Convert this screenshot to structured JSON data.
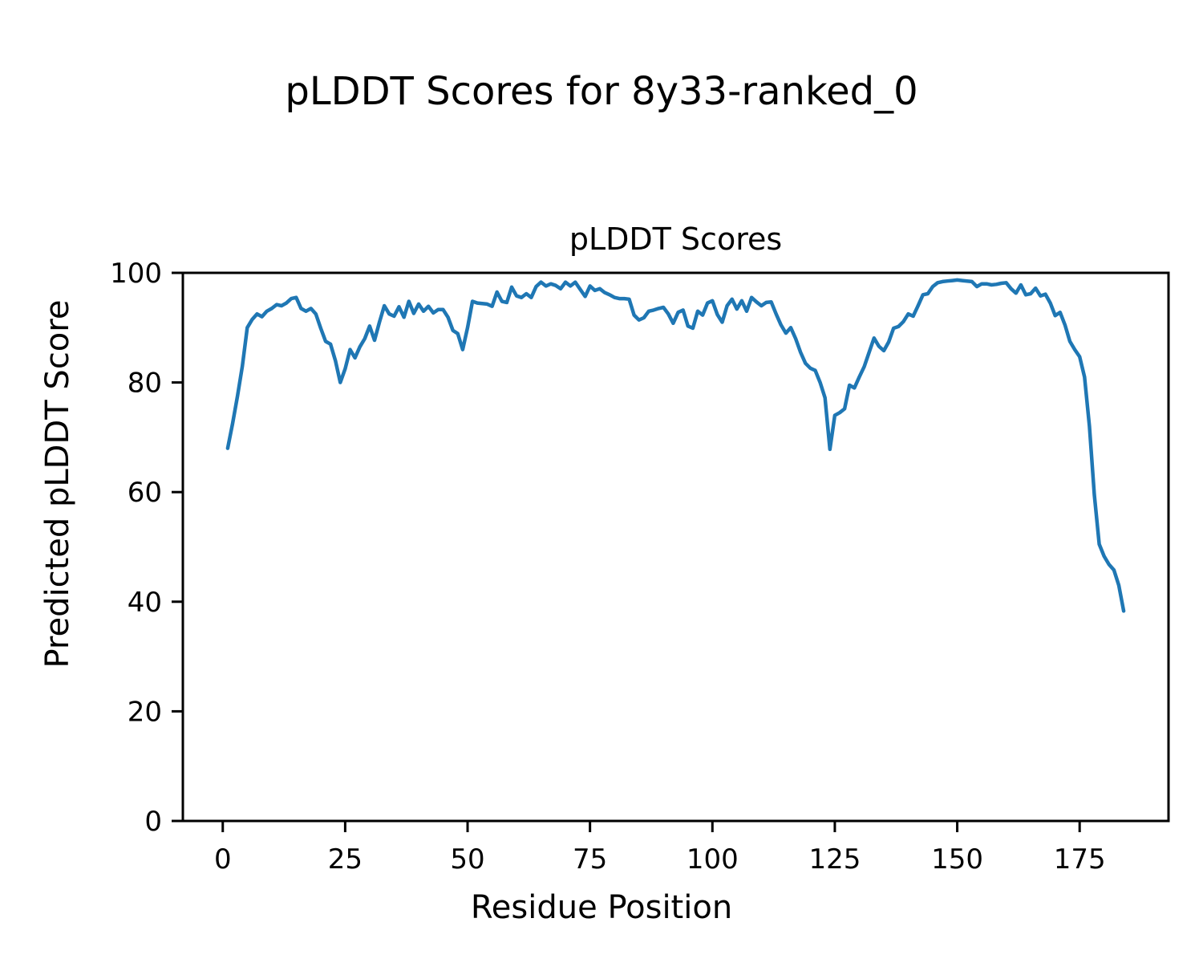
{
  "figure": {
    "suptitle": "pLDDT Scores for 8y33-ranked_0",
    "background": "#ffffff",
    "text_color": "#000000"
  },
  "chart_data": {
    "type": "line",
    "title": "pLDDT Scores",
    "xlabel": "Residue Position",
    "ylabel": "Predicted pLDDT Score",
    "line_color": "#1f77b4",
    "line_width": 4.5,
    "grid": false,
    "legend": "none",
    "xlim": [
      -8.15,
      193.15
    ],
    "ylim": [
      0,
      100
    ],
    "xticks": [
      0,
      25,
      50,
      75,
      100,
      125,
      150,
      175
    ],
    "yticks": [
      0,
      20,
      40,
      60,
      80,
      100
    ],
    "x_start": 1,
    "n_points": 184,
    "x_note": "x values are consecutive residue positions 1..184",
    "y": [
      68,
      72.5,
      77.5,
      83,
      90,
      91.5,
      92.5,
      92,
      93,
      93.5,
      94.2,
      94,
      94.5,
      95.3,
      95.5,
      93.5,
      93,
      93.5,
      92.5,
      89.9,
      87.5,
      87,
      84,
      80,
      82.5,
      86,
      84.5,
      86.5,
      88,
      90.3,
      87.7,
      91,
      94,
      92.5,
      92.1,
      93.8,
      91.9,
      94.8,
      92.6,
      94.3,
      93,
      93.9,
      92.7,
      93.3,
      93.3,
      91.9,
      89.5,
      88.9,
      86,
      90,
      94.8,
      94.5,
      94.4,
      94.3,
      93.9,
      96.5,
      94.8,
      94.6,
      97.4,
      95.8,
      95.5,
      96.2,
      95.5,
      97.5,
      98.3,
      97.6,
      98,
      97.7,
      97.1,
      98.3,
      97.6,
      98.3,
      97,
      95.7,
      97.6,
      96.8,
      97.1,
      96.4,
      96,
      95.5,
      95.3,
      95.3,
      95.2,
      92.3,
      91.4,
      91.8,
      93,
      93.2,
      93.5,
      93.7,
      92.5,
      90.8,
      92.8,
      93.2,
      90.3,
      89.9,
      93,
      92.3,
      94.5,
      94.9,
      92.4,
      91,
      94,
      95.2,
      93.4,
      94.9,
      93,
      95.5,
      94.7,
      94,
      94.6,
      94.7,
      92.5,
      90.5,
      89,
      90,
      88,
      85.5,
      83.5,
      82.6,
      82.2,
      80,
      77.2,
      67.8,
      74,
      74.5,
      75.2,
      79.5,
      79,
      81,
      82.9,
      85.5,
      88.1,
      86.6,
      85.8,
      87.4,
      89.9,
      90.2,
      91.1,
      92.5,
      92.1,
      94,
      96,
      96.2,
      97.5,
      98.2,
      98.4,
      98.5,
      98.6,
      98.7,
      98.6,
      98.5,
      98.4,
      97.5,
      98,
      98,
      97.8,
      97.9,
      98.1,
      98.2,
      97.1,
      96.3,
      97.8,
      96,
      96.2,
      97.2,
      95.8,
      96.1,
      94.5,
      92.2,
      92.8,
      90.5,
      87.5,
      86,
      84.7,
      81,
      72,
      59.5,
      50.5,
      48.3,
      46.8,
      45.8,
      43,
      38.3
    ]
  }
}
